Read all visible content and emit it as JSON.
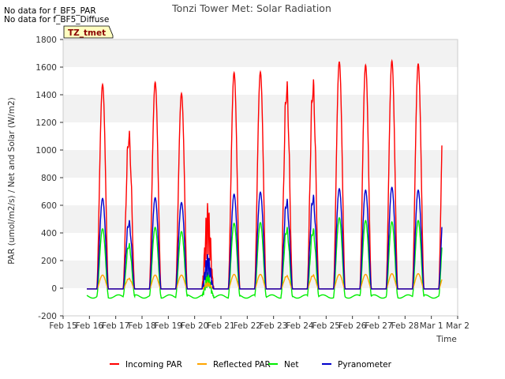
{
  "chart_data": {
    "type": "line",
    "title": "Tonzi Tower Met: Solar Radiation",
    "xlabel": "Time",
    "ylabel": "PAR (umol/m2/s) / Net and Solar (W/m2)",
    "ylim": [
      -200,
      1800
    ],
    "yticks": [
      -200,
      0,
      200,
      400,
      600,
      800,
      1000,
      1200,
      1400,
      1600,
      1800
    ],
    "xlim": [
      0,
      15
    ],
    "xticks": [
      "Feb 15",
      "Feb 16",
      "Feb 17",
      "Feb 18",
      "Feb 19",
      "Feb 20",
      "Feb 21",
      "Feb 22",
      "Feb 23",
      "Feb 24",
      "Feb 25",
      "Feb 26",
      "Feb 27",
      "Feb 28",
      "Mar 1",
      "Mar 2"
    ],
    "grid": "horizontal bands",
    "legend_position": "bottom",
    "x_units": "days since Feb 15",
    "series": [
      {
        "name": "Incoming PAR",
        "color": "#ff0000",
        "daily_peaks": [
          1475,
          1180,
          1490,
          1410,
          600,
          1560,
          1565,
          1550,
          1565,
          1640,
          1615,
          1645,
          1625,
          1620
        ]
      },
      {
        "name": "Reflected PAR",
        "color": "#ffa500",
        "daily_peaks": [
          95,
          75,
          95,
          95,
          40,
          100,
          100,
          95,
          100,
          100,
          100,
          105,
          105,
          100
        ]
      },
      {
        "name": "Net",
        "color": "#00ee00",
        "daily_peaks": [
          430,
          340,
          440,
          410,
          110,
          470,
          475,
          460,
          450,
          510,
          490,
          480,
          490,
          495
        ],
        "night_value": -60
      },
      {
        "name": "Pyranometer",
        "color": "#0000cc",
        "daily_peaks": [
          650,
          510,
          655,
          620,
          240,
          680,
          695,
          670,
          700,
          720,
          710,
          730,
          710,
          695
        ]
      }
    ]
  },
  "annotations": {
    "no_data_1": "No data for f_BF5_PAR",
    "no_data_2": "No data for f_BF5_Diffuse",
    "tag": "TZ_tmet"
  },
  "legend": {
    "items": [
      {
        "label": "Incoming PAR",
        "color": "#ff0000"
      },
      {
        "label": "Reflected PAR",
        "color": "#ffa500"
      },
      {
        "label": "Net",
        "color": "#00ee00"
      },
      {
        "label": "Pyranometer",
        "color": "#0000cc"
      }
    ]
  }
}
